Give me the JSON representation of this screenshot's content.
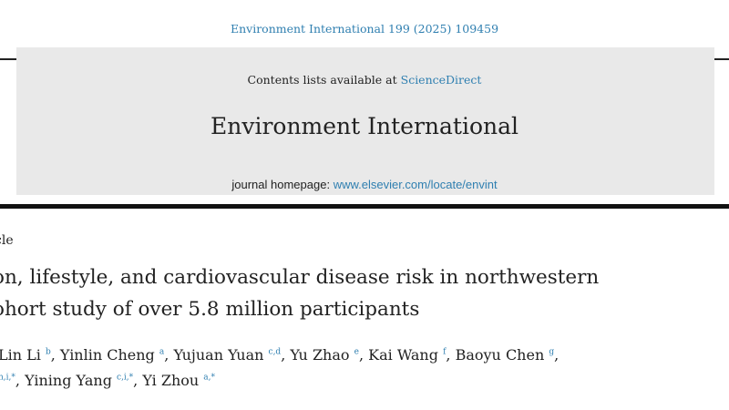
{
  "header": {
    "citation": "Environment International 199 (2025) 109459"
  },
  "banner": {
    "contents_prefix": "Contents lists available at ",
    "contents_link": "ScienceDirect",
    "journal_title": "Environment International",
    "homepage_label": "journal homepage: ",
    "homepage_link": "www.elsevier.com/locate/envint"
  },
  "article": {
    "type": "cle",
    "title_line1": "on, lifestyle, and cardiovascular disease risk in northwestern",
    "title_line2": "ohort study of over 5.8 million participants",
    "authors_line1": [
      {
        "name": "Lin Li",
        "sup": "b",
        "sep": ", "
      },
      {
        "name": "Yinlin Cheng",
        "sup": "a",
        "sep": ", "
      },
      {
        "name": "Yujuan Yuan",
        "sup": "c,d",
        "sep": ", "
      },
      {
        "name": "Yu Zhao",
        "sup": "e",
        "sep": ", "
      },
      {
        "name": "Kai Wang",
        "sup": "f",
        "sep": ", "
      },
      {
        "name": "Baoyu Chen",
        "sup": "g",
        "sep": ","
      }
    ],
    "authors_line2_lead_sup": "h,i,*",
    "authors_line2": [
      {
        "name": "Yining Yang",
        "sup": "c,i,*",
        "sep": ", "
      },
      {
        "name": "Yi Zhou",
        "sup": "a,*",
        "sep": ""
      }
    ]
  }
}
